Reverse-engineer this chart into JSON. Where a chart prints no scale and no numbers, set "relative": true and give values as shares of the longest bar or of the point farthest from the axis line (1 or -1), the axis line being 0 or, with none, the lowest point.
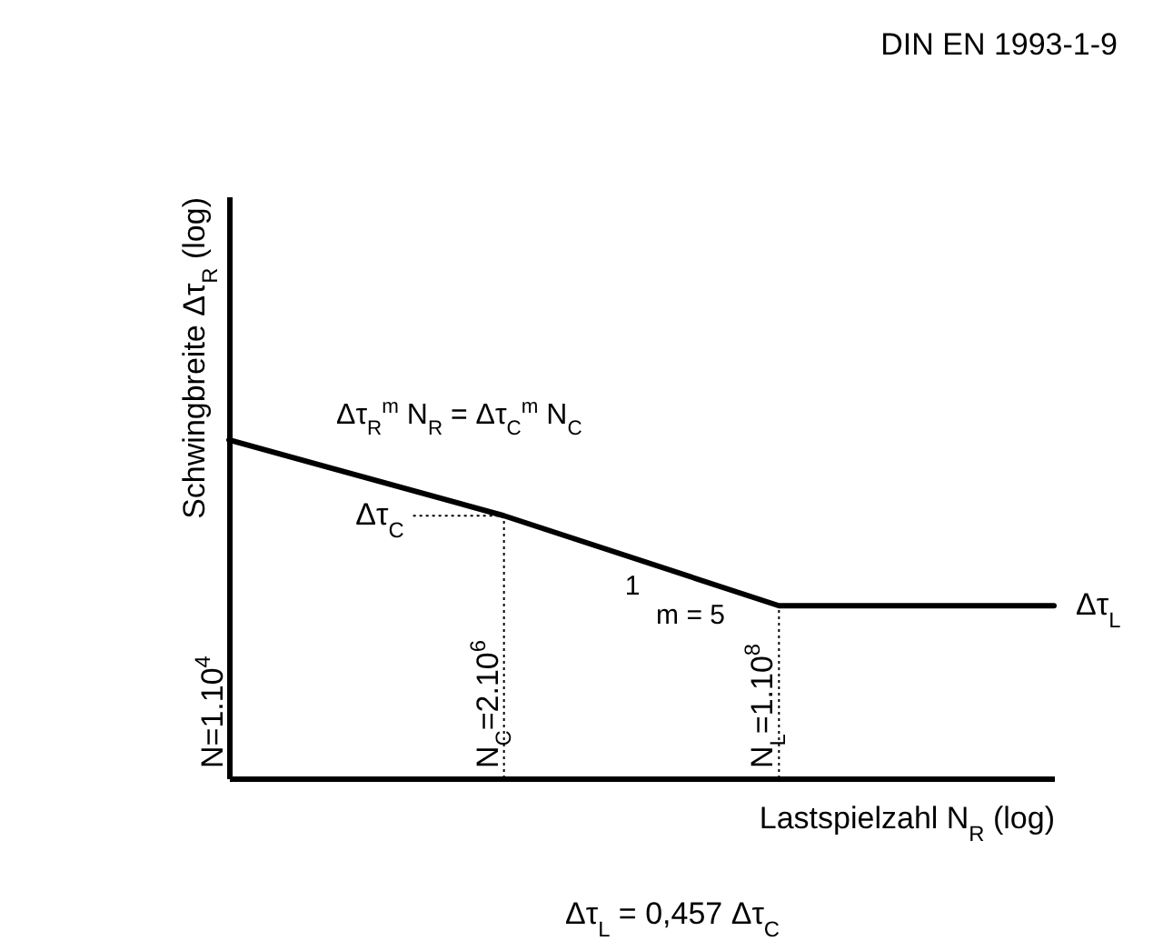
{
  "chart_data": {
    "type": "line",
    "title": "DIN EN 1993-1-9",
    "xlabel": "Lastspielzahl N$_{R}$ (log)",
    "ylabel": "Schwingbreite Δτ$_{R}$ (log)",
    "relative": true,
    "categories": [
      "N=1.10$^{4}$",
      "N$_{C}$=2.10$^{6}$",
      "N$_{L}$=1.10$^{8}$",
      null
    ],
    "series": [
      {
        "name": "Δτ$_{L}$",
        "color": "#000000",
        "values": [
          1,
          0.776,
          0.51,
          0.51
        ]
      }
    ],
    "ref_lines": [
      {
        "axis": "x",
        "value": "N$_{C}$=2.10$^{6}$",
        "label": "Δτ$_{C}$",
        "line_style": "dotted"
      },
      {
        "axis": "x",
        "value": "N$_{L}$=1.10$^{8}$",
        "line_style": "dotted"
      }
    ],
    "annotations": [
      "Δτ$_{R}$$^{m}$ N$_{R}$ = Δτ$_{C}$$^{m}$ N$_{C}$",
      "1",
      "m = 5",
      "Δτ$_{L}$ = 0,457 Δτ$_{C}$"
    ],
    "grid": false,
    "legend": false,
    "marker": "none",
    "line_style": "solid"
  }
}
